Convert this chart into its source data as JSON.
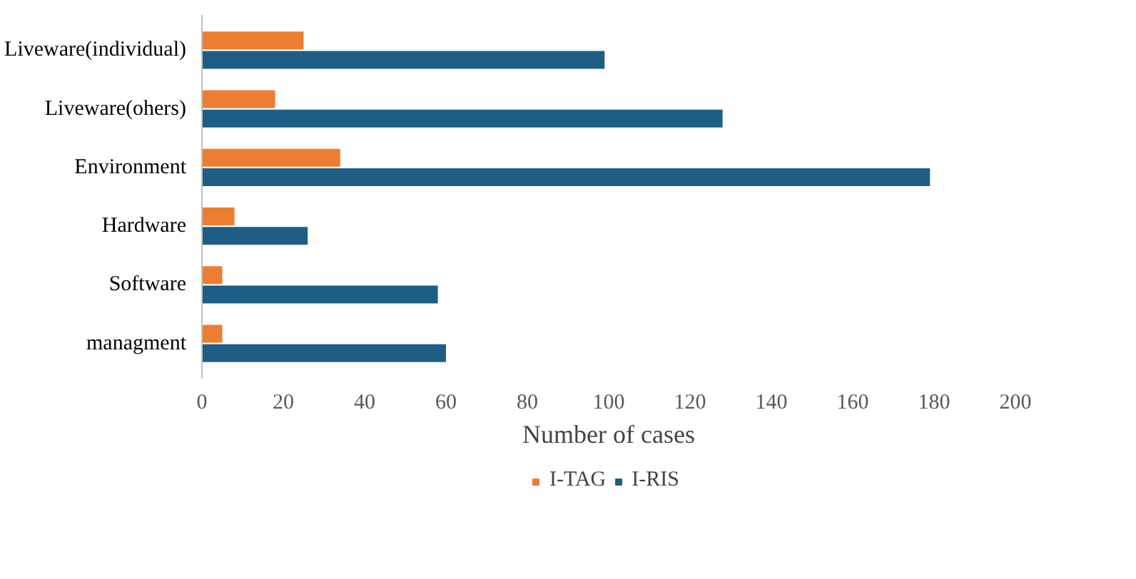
{
  "chart_data": {
    "type": "bar",
    "orientation": "horizontal",
    "xlabel": "Number of cases",
    "categories": [
      "Liveware(individual)",
      "Liveware(ohers)",
      "Environment",
      "Hardware",
      "Software",
      "managment"
    ],
    "series": [
      {
        "name": "I-TAG",
        "color": "#ed7d31",
        "values": [
          25,
          18,
          34,
          8,
          5,
          5
        ]
      },
      {
        "name": "I-RIS",
        "color": "#1f5e84",
        "values": [
          99,
          128,
          179,
          26,
          58,
          60
        ]
      }
    ],
    "xlim": [
      0,
      200
    ],
    "xticks": [
      0,
      20,
      40,
      60,
      80,
      100,
      120,
      140,
      160,
      180,
      200
    ],
    "grid": false,
    "legend": "bottom"
  }
}
